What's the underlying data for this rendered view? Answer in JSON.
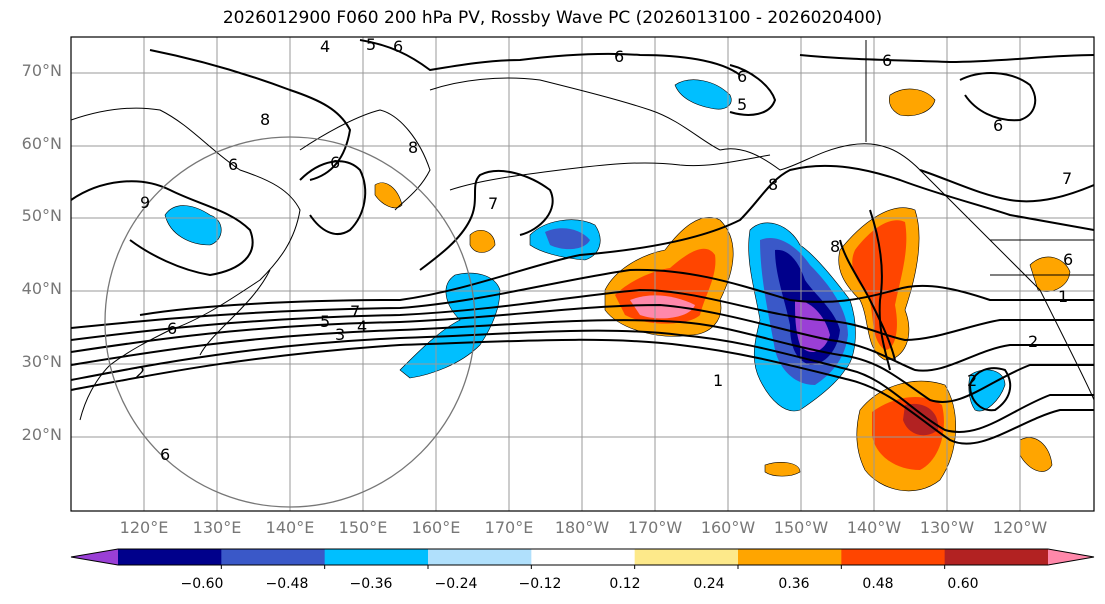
{
  "title": "2026012900 F060 200 hPa PV, Rossby Wave PC (2026013100 - 2026020400)",
  "lat_labels": [
    "70°N",
    "60°N",
    "50°N",
    "40°N",
    "30°N",
    "20°N"
  ],
  "lon_labels": [
    "120°E",
    "130°E",
    "140°E",
    "150°E",
    "160°E",
    "170°E",
    "180°W",
    "170°W",
    "160°W",
    "150°W",
    "140°W",
    "130°W",
    "120°W"
  ],
  "colorbar": {
    "ticks": [
      "−0.60",
      "−0.48",
      "−0.36",
      "−0.24",
      "−0.12",
      "0.12",
      "0.24",
      "0.36",
      "0.48",
      "0.60"
    ],
    "colors": [
      "#9a3fd6",
      "#00008b",
      "#3a58c8",
      "#00bfff",
      "#b0e0fc",
      "#ffffff",
      "#fde98a",
      "#ffa500",
      "#ff4500",
      "#b22222",
      "#ff88aa"
    ]
  },
  "contour_labels": [
    "4",
    "5",
    "6",
    "6",
    "6",
    "8",
    "6",
    "5",
    "6",
    "6",
    "7",
    "8",
    "8",
    "9",
    "8",
    "7",
    "6",
    "7",
    "5",
    "3",
    "4",
    "6",
    "2",
    "1",
    "2",
    "1",
    "2",
    "6",
    "6"
  ],
  "colors": {
    "frame": "#000000",
    "grid": "#999999",
    "circle": "#777777"
  }
}
